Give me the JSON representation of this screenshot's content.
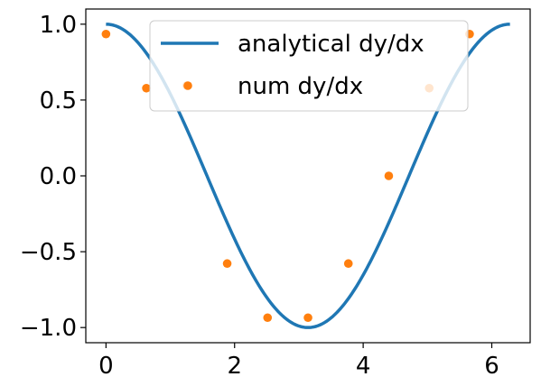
{
  "chart_data": {
    "type": "line",
    "xlim": [
      -0.314,
      6.597
    ],
    "ylim": [
      -1.1,
      1.1
    ],
    "xticks": [
      0,
      2,
      4,
      6
    ],
    "xtick_labels": [
      "0",
      "2",
      "4",
      "6"
    ],
    "yticks": [
      -1.0,
      -0.5,
      0.0,
      0.5,
      1.0
    ],
    "ytick_labels": [
      "−1.0",
      "−0.5",
      "0.0",
      "0.5",
      "1.0"
    ],
    "grid": false,
    "legend": "top-center",
    "series": [
      {
        "name": "analytical dy/dx",
        "kind": "line",
        "color": "#1f77b4",
        "function": "cos(x)",
        "x_range": [
          0,
          6.283
        ]
      },
      {
        "name": "num dy/dx",
        "kind": "scatter",
        "color": "#ff7f0e",
        "x": [
          0.0,
          0.628,
          1.257,
          1.885,
          2.513,
          3.142,
          3.77,
          4.398,
          5.027,
          5.655
        ],
        "y": [
          0.935,
          0.578,
          0.595,
          -0.578,
          -0.935,
          -0.935,
          -0.578,
          0.0,
          0.578,
          0.935
        ]
      }
    ]
  }
}
